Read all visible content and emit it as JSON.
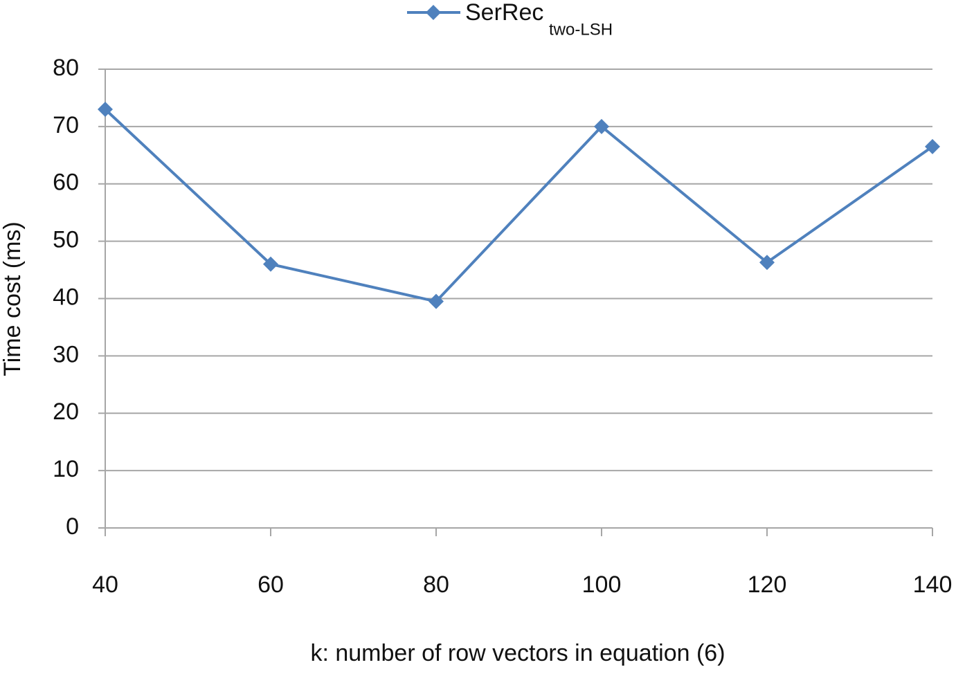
{
  "chart_data": {
    "type": "line",
    "xlabel": "k: number of row vectors in equation (6)",
    "ylabel": "Time cost  (ms)",
    "x": [
      40,
      60,
      80,
      100,
      120,
      140
    ],
    "series": [
      {
        "name": "SerRec",
        "subscript": "two-LSH",
        "color": "#4f81bd",
        "values": [
          73,
          46,
          39.5,
          70,
          46.3,
          66.5
        ]
      }
    ],
    "xlim": [
      40,
      140
    ],
    "xticks": [
      40,
      60,
      80,
      100,
      120,
      140
    ],
    "ylim": [
      0,
      80
    ],
    "yticks": [
      0,
      10,
      20,
      30,
      40,
      50,
      60,
      70,
      80
    ],
    "grid": true,
    "legend": "top"
  }
}
